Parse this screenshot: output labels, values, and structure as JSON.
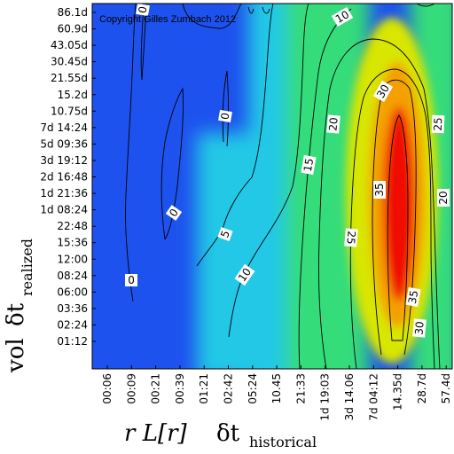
{
  "chart_data": {
    "type": "heatmap",
    "copyright": "Copyright Gilles Zumbach 2012",
    "x_tick_labels": [
      "00:06",
      "00:09",
      "00:21",
      "00:39",
      "01:21",
      "02:42",
      "05:24",
      "10.45",
      "21:33",
      "1d 19:03",
      "3d 14.06",
      "7d 04:12",
      "14.35d",
      "28.7d",
      "57.4d"
    ],
    "y_tick_labels": [
      "86.1d",
      "60.9d",
      "43.05d",
      "30.45d",
      "21.55d",
      "15.2d",
      "10.75d",
      "7d 14:24",
      "5d 09:36",
      "3d 19:12",
      "2d 16:48",
      "1d 21:36",
      "1d 08:24",
      "22:48",
      "15:36",
      "12:00",
      "08:24",
      "06:00",
      "03:36",
      "02:24",
      "01:12"
    ],
    "x_axis_title": {
      "main": "r L[r]",
      "symbol": "δt",
      "subscript": "historical"
    },
    "y_axis_title": {
      "main": "vol",
      "symbol": "δt",
      "subscript": "realized"
    },
    "contour_labels": [
      {
        "text": "0"
      },
      {
        "text": "0"
      },
      {
        "text": "0"
      },
      {
        "text": "0"
      },
      {
        "text": "5"
      },
      {
        "text": "10"
      },
      {
        "text": "10"
      },
      {
        "text": "15"
      },
      {
        "text": "20"
      },
      {
        "text": "20"
      },
      {
        "text": "25"
      },
      {
        "text": "25"
      },
      {
        "text": "30"
      },
      {
        "text": "30"
      },
      {
        "text": "35"
      },
      {
        "text": "35"
      }
    ],
    "colors": {
      "low": "#1e52ee",
      "mid_low": "#22c8e6",
      "mid": "#36dc7a",
      "mid_high": "#d8e600",
      "high": "#f4a000",
      "peak": "#f01000"
    }
  }
}
